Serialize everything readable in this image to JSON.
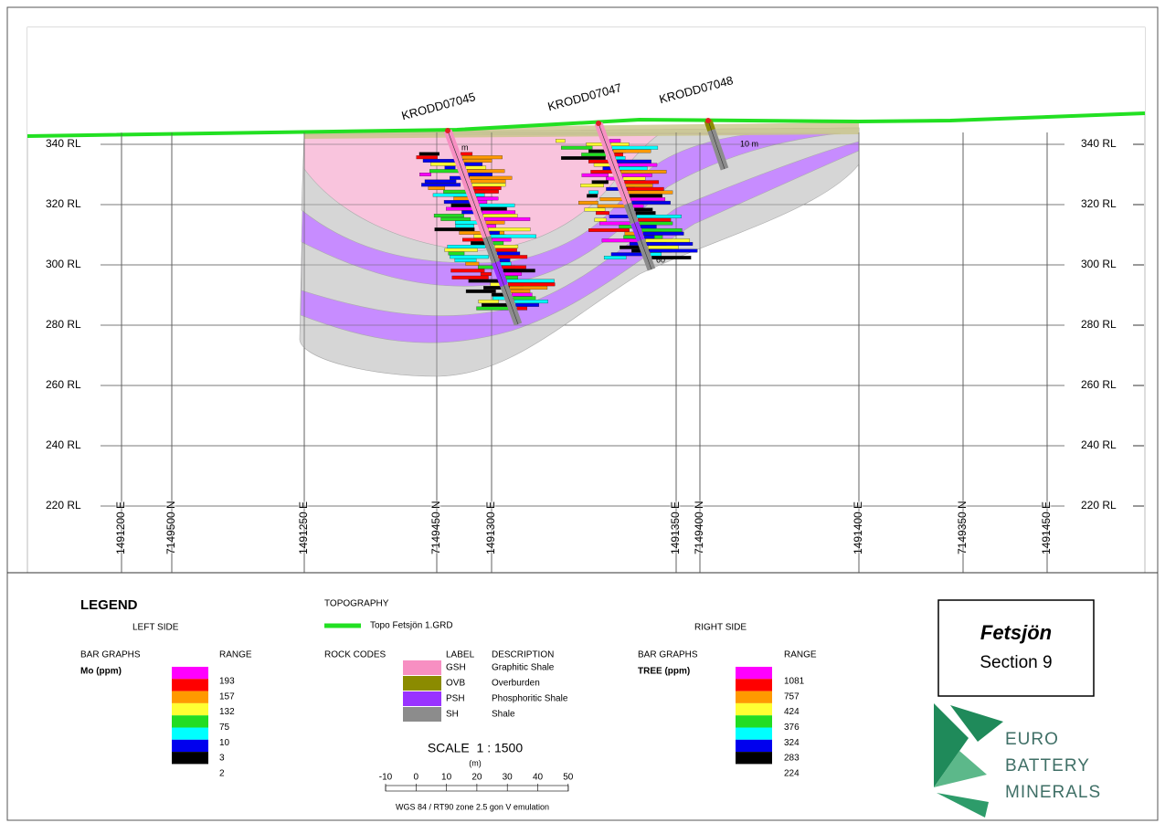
{
  "section": {
    "elevation_labels": [
      "340 RL",
      "320 RL",
      "300 RL",
      "280 RL",
      "260 RL",
      "240 RL",
      "220 RL"
    ],
    "grid_labels": [
      "1491200 E",
      "7149500 N",
      "1491250 E",
      "7149450 N",
      "1491300 E",
      "1491350 E",
      "7149400 N",
      "1491400 E",
      "7149350 N",
      "1491450 E"
    ],
    "drillholes": [
      {
        "name": "KRODD07045",
        "depth_label": "m"
      },
      {
        "name": "KRODD07047",
        "depth_label": "60"
      },
      {
        "name": "KRODD07048",
        "depth_label": "10 m"
      }
    ]
  },
  "legend": {
    "title": "LEGEND",
    "left": {
      "heading": "LEFT SIDE",
      "bar_graphs": "BAR GRAPHS",
      "range": "RANGE",
      "element": "Mo (ppm)",
      "ranges": [
        193,
        157,
        132,
        75,
        10,
        3,
        2
      ],
      "colors": [
        "#ff00ff",
        "#ff0000",
        "#ff9900",
        "#ffff33",
        "#22dd22",
        "#00ffff",
        "#0000ee",
        "#000000"
      ]
    },
    "topography": {
      "heading": "TOPOGRAPHY",
      "label": "Topo Fetsjön 1.GRD",
      "color": "#22e022"
    },
    "rock_codes": {
      "heading": "ROCK CODES",
      "label_header": "LABEL",
      "description_header": "DESCRIPTION",
      "items": [
        {
          "label": "GSH",
          "description": "Graphitic Shale",
          "color": "#f78fc2"
        },
        {
          "label": "OVB",
          "description": "Overburden",
          "color": "#8b8b00"
        },
        {
          "label": "PSH",
          "description": "Phosphoritic Shale",
          "color": "#9933ff"
        },
        {
          "label": "SH",
          "description": "Shale",
          "color": "#8c8c8c"
        }
      ]
    },
    "scale": {
      "title": "SCALE  1 : 1500",
      "unit": "(m)",
      "ticks": [
        -10,
        0,
        10,
        20,
        30,
        40,
        50
      ],
      "projection": "WGS 84 / RT90 zone 2.5 gon V emulation"
    },
    "right": {
      "heading": "RIGHT SIDE",
      "bar_graphs": "BAR GRAPHS",
      "range": "RANGE",
      "element": "TREE (ppm)",
      "ranges": [
        1081,
        757,
        424,
        376,
        324,
        283,
        224
      ],
      "colors": [
        "#ff00ff",
        "#ff0000",
        "#ff9900",
        "#ffff33",
        "#22dd22",
        "#00ffff",
        "#0000ee",
        "#000000"
      ]
    }
  },
  "title_box": {
    "name": "Fetsjön",
    "subtitle": "Section 9"
  },
  "logo": {
    "lines": [
      "EURO",
      "BATTERY",
      "MINERALS"
    ]
  }
}
